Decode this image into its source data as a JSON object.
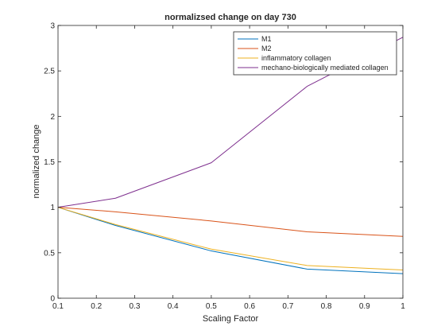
{
  "chart_data": {
    "type": "line",
    "title": "normalizsed change on day 730",
    "xlabel": "Scaling Factor",
    "ylabel": "normalized change",
    "xlim": [
      0.1,
      1
    ],
    "ylim": [
      0,
      3
    ],
    "xticks": [
      "0.1",
      "0.2",
      "0.3",
      "0.4",
      "0.5",
      "0.6",
      "0.7",
      "0.8",
      "0.9",
      "1"
    ],
    "yticks": [
      "0",
      "0.5",
      "1",
      "1.5",
      "2",
      "2.5",
      "3"
    ],
    "grid": false,
    "legend_position": "top-right",
    "x": [
      0.1,
      0.25,
      0.5,
      0.75,
      1.0
    ],
    "series": [
      {
        "name": "M1",
        "color": "#0072BD",
        "values": [
          1.0,
          0.8,
          0.52,
          0.32,
          0.27
        ]
      },
      {
        "name": "M2",
        "color": "#D95319",
        "values": [
          1.0,
          0.95,
          0.85,
          0.73,
          0.68
        ]
      },
      {
        "name": "inflammatory collagen",
        "color": "#EDB120",
        "values": [
          1.0,
          0.81,
          0.54,
          0.36,
          0.31
        ]
      },
      {
        "name": "mechano-biologically mediated collagen",
        "color": "#7E2F8E",
        "values": [
          1.0,
          1.1,
          1.49,
          2.33,
          2.87
        ]
      }
    ]
  }
}
